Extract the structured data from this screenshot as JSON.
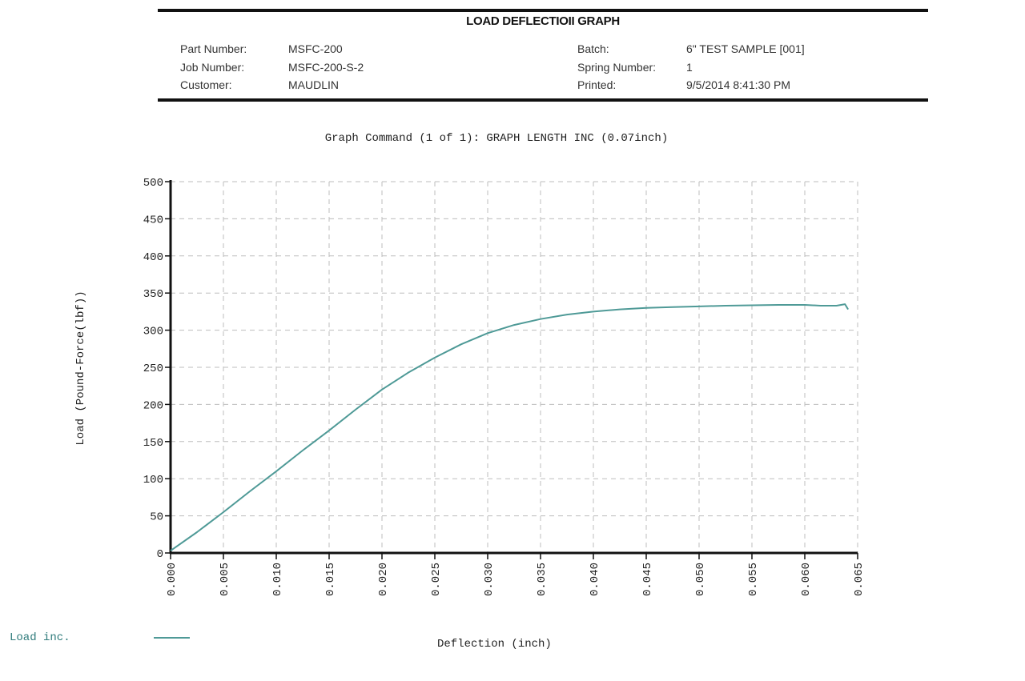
{
  "header": {
    "title": "LOAD DEFLECTIOII GRAPH",
    "left": [
      {
        "label": "Part Number:",
        "value": "MSFC-200"
      },
      {
        "label": "Job Number:",
        "value": "MSFC-200-S-2"
      },
      {
        "label": "Customer:",
        "value": "MAUDLIN"
      }
    ],
    "right": [
      {
        "label": "Batch:",
        "value": "6\" TEST SAMPLE [001]"
      },
      {
        "label": "Spring Number:",
        "value": "1"
      },
      {
        "label": "Printed:",
        "value": "9/5/2014 8:41:30 PM"
      }
    ]
  },
  "graph_command": "Graph Command (1 of 1): GRAPH LENGTH INC (0.07inch)",
  "legend": {
    "label": "Load inc.",
    "color": "#4f9a97"
  },
  "chart_data": {
    "type": "line",
    "title": "Graph Command (1 of 1): GRAPH LENGTH INC (0.07inch)",
    "xlabel": "Deflection (inch)",
    "ylabel": "Load (Pound-Force(lbf))",
    "xlim": [
      0.0,
      0.065
    ],
    "ylim": [
      0,
      500
    ],
    "grid": true,
    "grid_style": "dashed",
    "legend_position": "bottom-left",
    "x_ticks": [
      "0.000",
      "0.005",
      "0.010",
      "0.015",
      "0.020",
      "0.025",
      "0.030",
      "0.035",
      "0.040",
      "0.045",
      "0.050",
      "0.055",
      "0.060",
      "0.065"
    ],
    "y_ticks": [
      "0",
      "50",
      "100",
      "150",
      "200",
      "250",
      "300",
      "350",
      "400",
      "450",
      "500"
    ],
    "series": [
      {
        "name": "Load inc.",
        "color": "#4f9a97",
        "x": [
          0.0,
          0.0025,
          0.005,
          0.0075,
          0.01,
          0.0125,
          0.015,
          0.0175,
          0.02,
          0.0225,
          0.025,
          0.0275,
          0.03,
          0.0325,
          0.035,
          0.0375,
          0.04,
          0.0425,
          0.045,
          0.0475,
          0.05,
          0.0525,
          0.055,
          0.0575,
          0.06,
          0.0615,
          0.063,
          0.0638,
          0.0641
        ],
        "values": [
          3,
          28,
          55,
          83,
          110,
          138,
          165,
          193,
          220,
          243,
          263,
          281,
          296,
          307,
          315,
          321,
          325,
          328,
          330,
          331,
          332,
          333,
          333.5,
          334,
          334,
          333,
          333,
          335,
          328
        ]
      }
    ]
  }
}
